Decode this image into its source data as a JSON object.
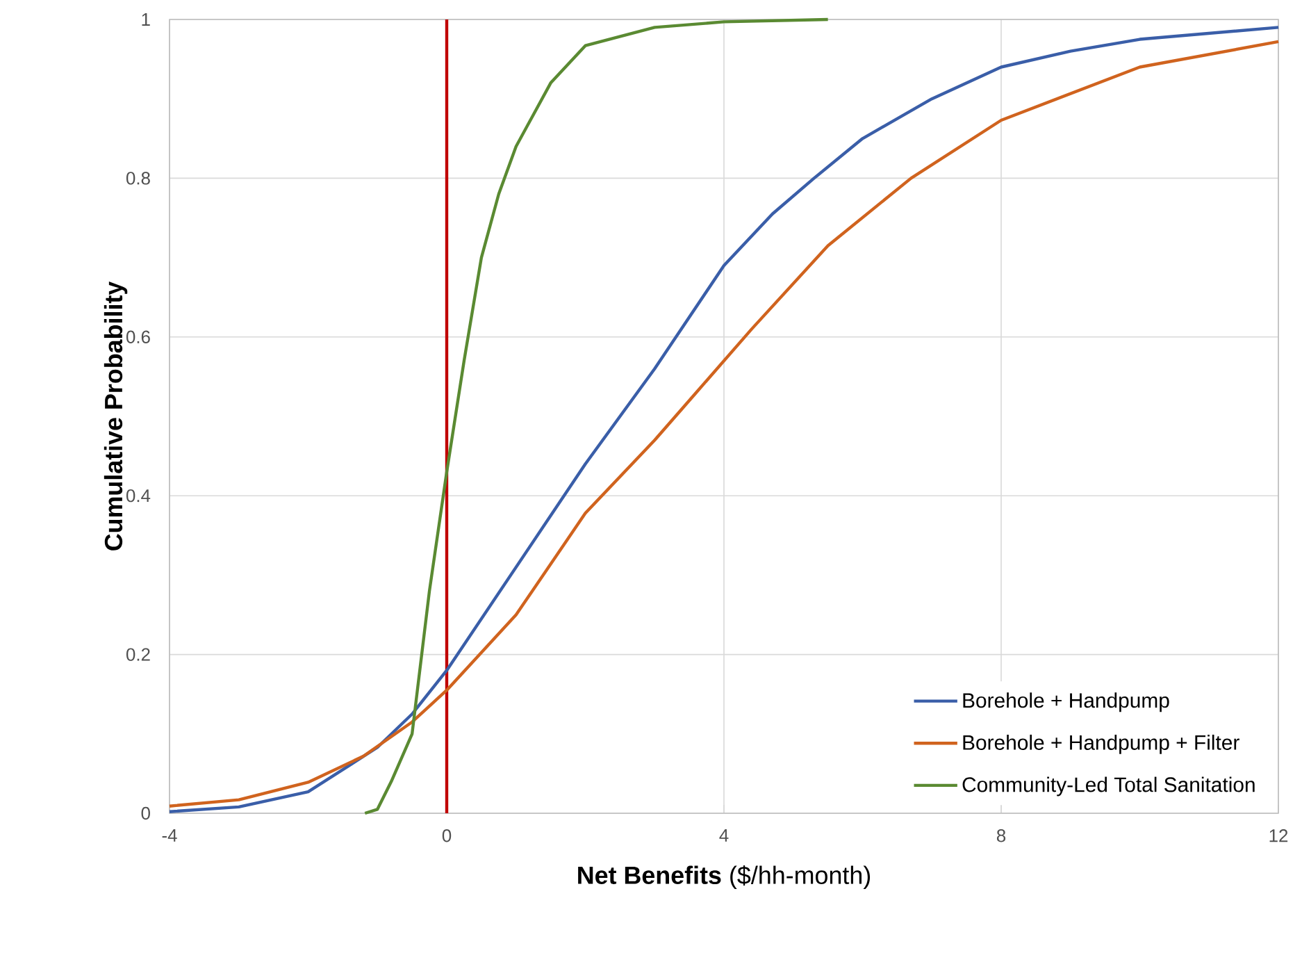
{
  "chart_data": {
    "type": "line",
    "xlabel": "**Net Benefits** ($/hh-month)",
    "ylabel": "Cumulative Probability",
    "xlim": [
      -4,
      12
    ],
    "ylim": [
      0,
      1
    ],
    "xticks": [
      -4,
      0,
      4,
      8,
      12
    ],
    "yticks": [
      0,
      0.2,
      0.4,
      0.6,
      0.8,
      1
    ],
    "grid": true,
    "legend": "bottom right",
    "marker": "none",
    "line_style": "solid",
    "ref_lines": [
      {
        "axis": "x",
        "value": 0,
        "color": "#c00000"
      }
    ],
    "series": [
      {
        "name": "Borehole + Handpump",
        "color": "#3a5ea8",
        "x": [
          -4,
          -3,
          -2,
          -1,
          -0.5,
          0,
          1,
          2,
          3,
          4,
          4.7,
          5.3,
          6,
          7,
          8,
          9,
          10,
          12
        ],
        "values": [
          0.002,
          0.008,
          0.027,
          0.083,
          0.125,
          0.18,
          0.31,
          0.44,
          0.56,
          0.69,
          0.755,
          0.8,
          0.85,
          0.9,
          0.94,
          0.96,
          0.975,
          0.99
        ]
      },
      {
        "name": "Borehole + Handpump + Filter",
        "color": "#d0631e",
        "x": [
          -4,
          -3,
          -2,
          -1.2,
          -0.5,
          0,
          1,
          2,
          3,
          3.6,
          4.4,
          5.5,
          6.7,
          8,
          10,
          12
        ],
        "values": [
          0.009,
          0.017,
          0.039,
          0.072,
          0.115,
          0.155,
          0.25,
          0.378,
          0.47,
          0.53,
          0.61,
          0.715,
          0.8,
          0.873,
          0.94,
          0.972
        ]
      },
      {
        "name": "Community-Led Total Sanitation",
        "color": "#5a8a32",
        "x": [
          -1.18,
          -1,
          -0.8,
          -0.5,
          -0.25,
          0,
          0.25,
          0.5,
          0.75,
          1,
          1.5,
          2,
          3,
          4,
          5.5
        ],
        "values": [
          0,
          0.005,
          0.04,
          0.1,
          0.28,
          0.43,
          0.57,
          0.7,
          0.78,
          0.84,
          0.92,
          0.967,
          0.99,
          0.997,
          1
        ]
      }
    ]
  }
}
